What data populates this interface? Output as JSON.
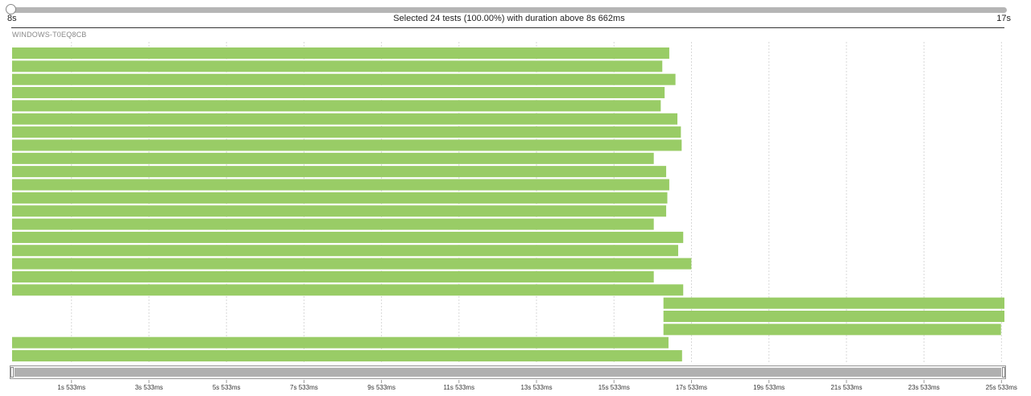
{
  "slider": {
    "min_label": "8s",
    "max_label": "17s",
    "summary": "Selected 24 tests (100.00%) with duration above 8s 662ms"
  },
  "host": {
    "label": "WINDOWS-T0EQ8CB"
  },
  "colors": {
    "bar": "#99cc66",
    "grid": "#d8d8d8",
    "axis": "#333333"
  },
  "chart_data": {
    "type": "bar",
    "orientation": "horizontal-timeline",
    "x_unit": "ms",
    "xlim": [
      0,
      25900
    ],
    "tick_values": [
      1533,
      3533,
      5533,
      7533,
      9533,
      11533,
      13533,
      15533,
      17533,
      19533,
      21533,
      23533,
      25533
    ],
    "tick_labels": [
      "1s 533ms",
      "3s 533ms",
      "5s 533ms",
      "7s 533ms",
      "9s 533ms",
      "11s 533ms",
      "13s 533ms",
      "15s 533ms",
      "17s 533ms",
      "19s 533ms",
      "21s 533ms",
      "23s 533ms",
      "25s 533ms"
    ],
    "grid": true,
    "tests": [
      {
        "start": 0,
        "end": 16960
      },
      {
        "start": 0,
        "end": 16780
      },
      {
        "start": 0,
        "end": 17120
      },
      {
        "start": 0,
        "end": 16840
      },
      {
        "start": 0,
        "end": 16740
      },
      {
        "start": 0,
        "end": 17170
      },
      {
        "start": 0,
        "end": 17260
      },
      {
        "start": 0,
        "end": 17280
      },
      {
        "start": 0,
        "end": 16560
      },
      {
        "start": 0,
        "end": 16880
      },
      {
        "start": 0,
        "end": 16960
      },
      {
        "start": 0,
        "end": 16910
      },
      {
        "start": 0,
        "end": 16880
      },
      {
        "start": 0,
        "end": 16560
      },
      {
        "start": 0,
        "end": 17320
      },
      {
        "start": 0,
        "end": 17190
      },
      {
        "start": 0,
        "end": 17530
      },
      {
        "start": 0,
        "end": 16560
      },
      {
        "start": 0,
        "end": 17320
      },
      {
        "start": 16810,
        "end": 25740
      },
      {
        "start": 16810,
        "end": 25680
      },
      {
        "start": 16810,
        "end": 25520
      },
      {
        "start": 0,
        "end": 16940
      },
      {
        "start": 0,
        "end": 17290
      }
    ]
  }
}
